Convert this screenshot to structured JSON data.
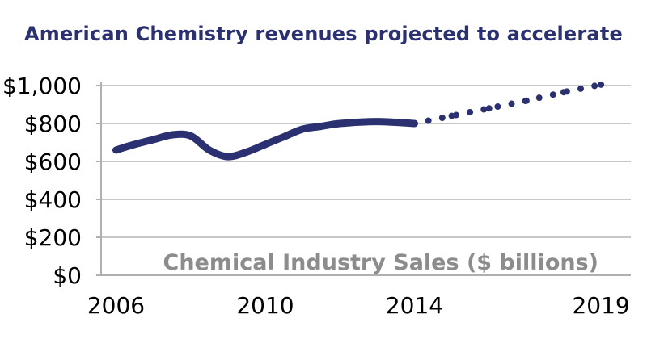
{
  "title": "American Chemistry revenues projected to accelerate",
  "chart_data": {
    "type": "line",
    "title": "American Chemistry revenues projected to accelerate",
    "annotation": "Chemical Industry Sales ($ billions)",
    "xlabel": "",
    "ylabel": "",
    "xlim": [
      2005.6,
      2019.8
    ],
    "ylim": [
      0,
      1000
    ],
    "grid": true,
    "y_ticks": [
      0,
      200,
      400,
      600,
      800,
      1000
    ],
    "y_tick_labels": [
      "$0",
      "$200",
      "$400",
      "$600",
      "$800",
      "$1,000"
    ],
    "x_ticks": [
      2006,
      2010,
      2014,
      2019
    ],
    "x_tick_labels": [
      "2006",
      "2010",
      "2014",
      "2019"
    ],
    "series": [
      {
        "style": "solid",
        "color": "#2b3170",
        "x": [
          2006,
          2006.5,
          2007,
          2007.5,
          2008,
          2008.5,
          2009,
          2009.5,
          2010,
          2010.5,
          2011,
          2011.5,
          2012,
          2013,
          2014
        ],
        "y": [
          660,
          690,
          715,
          740,
          735,
          660,
          625,
          650,
          690,
          730,
          770,
          785,
          800,
          810,
          800
        ]
      },
      {
        "style": "dotted",
        "color": "#2b3170",
        "x": [
          2014,
          2015,
          2016,
          2017,
          2018,
          2019
        ],
        "y": [
          800,
          840,
          880,
          920,
          965,
          1005
        ]
      }
    ]
  }
}
